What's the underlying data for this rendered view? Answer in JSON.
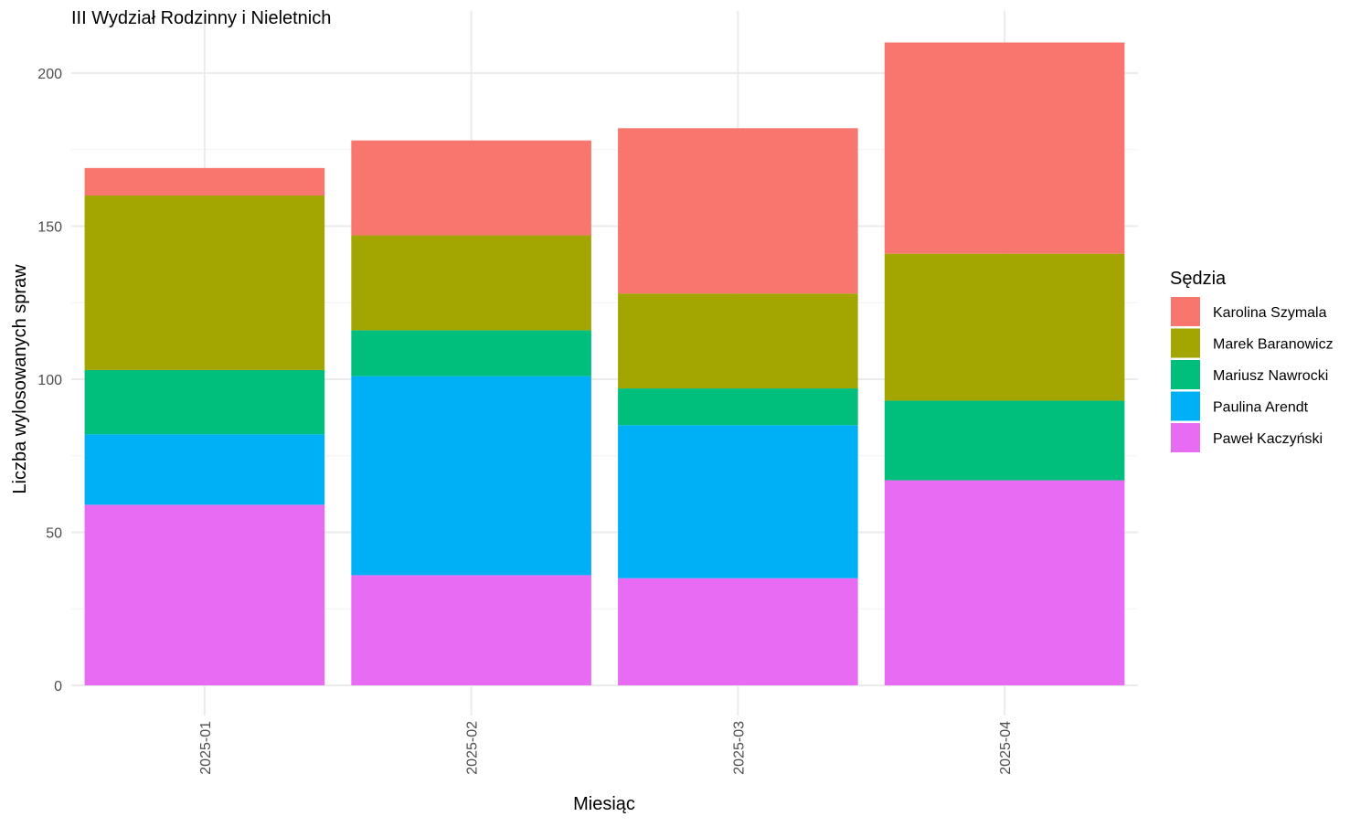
{
  "chart_data": {
    "type": "bar",
    "stacked": true,
    "title": "III Wydział Rodzinny i Nieletnich",
    "xlabel": "Miesiąc",
    "ylabel": "Liczba wylosowanych spraw",
    "categories": [
      "2025-01",
      "2025-02",
      "2025-03",
      "2025-04"
    ],
    "ylim": [
      0,
      210
    ],
    "yticks": [
      0,
      50,
      100,
      150,
      200
    ],
    "grid": true,
    "legend": {
      "title": "Sędzia",
      "position": "right"
    },
    "series": [
      {
        "name": "Paweł Kaczyński",
        "color": "#E76BF3",
        "values": [
          59,
          36,
          35,
          67
        ]
      },
      {
        "name": "Paulina Arendt",
        "color": "#00B0F6",
        "values": [
          23,
          65,
          50,
          0
        ]
      },
      {
        "name": "Mariusz Nawrocki",
        "color": "#00BF7D",
        "values": [
          21,
          15,
          12,
          26
        ]
      },
      {
        "name": "Marek Baranowicz",
        "color": "#A3A500",
        "values": [
          57,
          31,
          31,
          48
        ]
      },
      {
        "name": "Karolina Szymala",
        "color": "#F8766D",
        "values": [
          9,
          31,
          54,
          69
        ]
      }
    ],
    "legend_order": [
      "Karolina Szymala",
      "Marek Baranowicz",
      "Mariusz Nawrocki",
      "Paulina Arendt",
      "Paweł Kaczyński"
    ]
  }
}
